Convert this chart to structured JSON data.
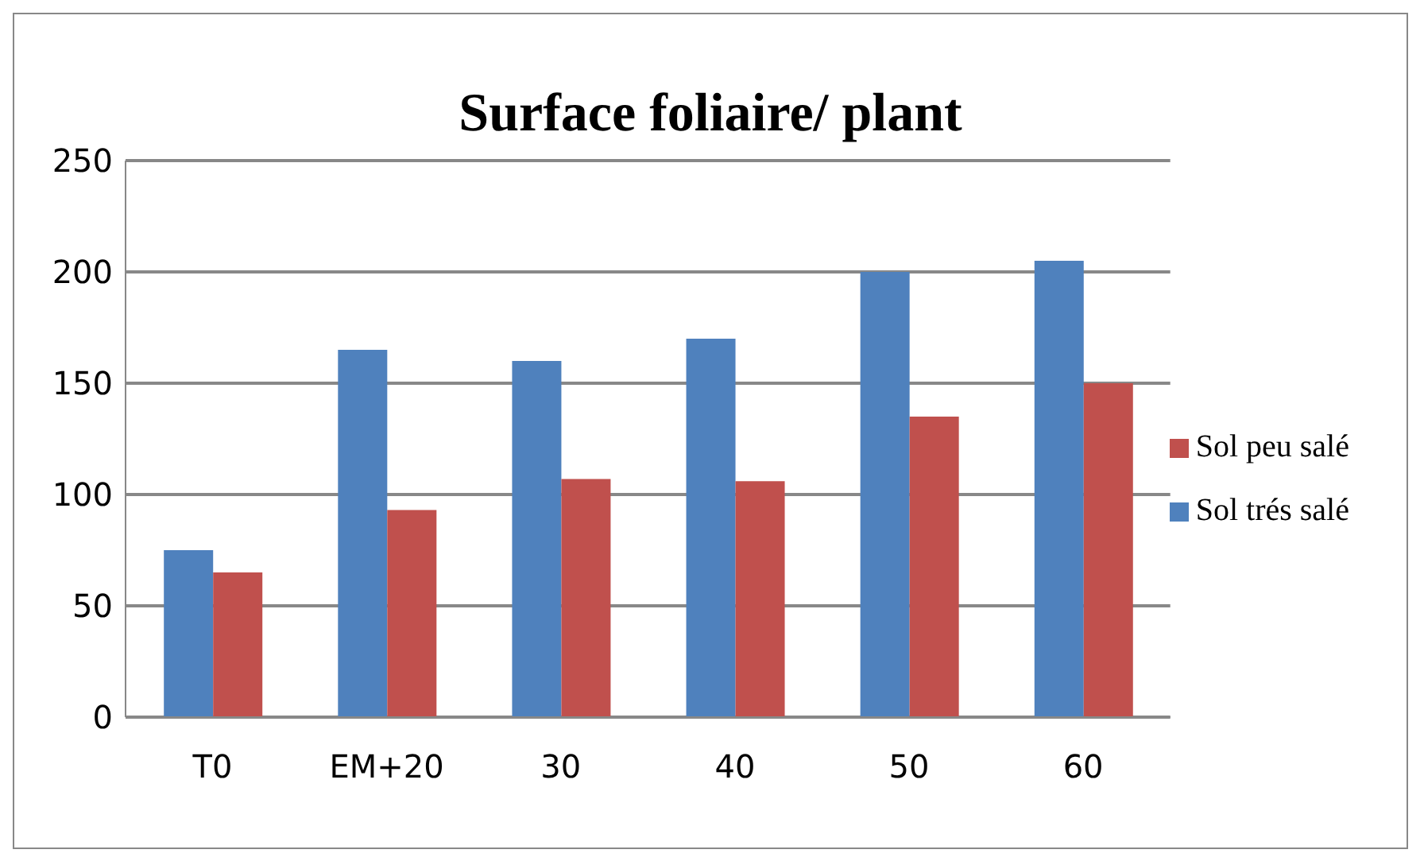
{
  "chart_data": {
    "type": "bar",
    "title": "Surface foliaire/ plant",
    "categories": [
      "T0",
      "EM+20",
      "30",
      "40",
      "50",
      "60"
    ],
    "series": [
      {
        "name": "Sol trés salé",
        "color": "#4f81bd",
        "values": [
          75,
          165,
          160,
          170,
          200,
          205
        ]
      },
      {
        "name": "Sol peu salé",
        "color": "#c0504d",
        "values": [
          65,
          93,
          107,
          106,
          135,
          150
        ]
      }
    ],
    "ylim": [
      0,
      250
    ],
    "yticks": [
      0,
      50,
      100,
      150,
      200,
      250
    ],
    "grid": "y",
    "legend": "right"
  }
}
